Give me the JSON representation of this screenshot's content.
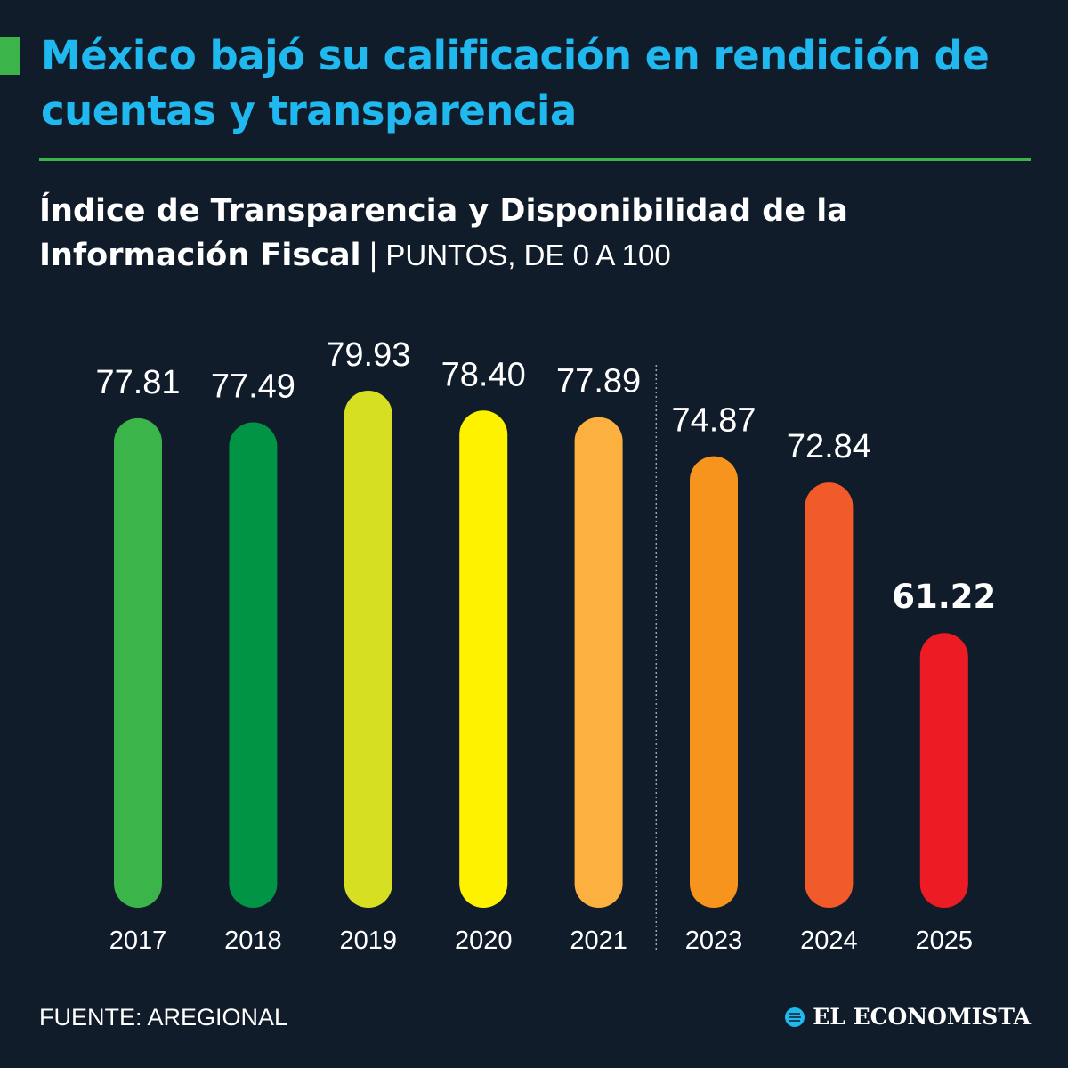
{
  "header": {
    "title": "México bajó su calificación en rendición de cuentas y transparencia",
    "subtitle_bold": "Índice de Transparencia y Disponibilidad de la Información Fiscal",
    "separator": "|",
    "units": "PUNTOS, DE 0 A 100"
  },
  "chart_data": {
    "type": "bar",
    "title": "Índice de Transparencia y Disponibilidad de la Información Fiscal",
    "ylabel": "PUNTOS, DE 0 A 100",
    "categories": [
      "2017",
      "2018",
      "2019",
      "2020",
      "2021",
      "2023",
      "2024",
      "2025"
    ],
    "values": [
      77.81,
      77.49,
      79.93,
      78.4,
      77.89,
      74.87,
      72.84,
      61.22
    ],
    "value_labels": [
      "77.81",
      "77.49",
      "79.93",
      "78.40",
      "77.89",
      "74.87",
      "72.84",
      "61.22"
    ],
    "colors": [
      "#3bb54a",
      "#009444",
      "#d7df23",
      "#fff200",
      "#fbb040",
      "#f7941d",
      "#f15a29",
      "#ed1c24"
    ],
    "highlight_index": 7,
    "divider_after": "2021",
    "grid": false
  },
  "footer": {
    "source": "FUENTE: AREGIONAL",
    "brand": "EL ECONOMISTA"
  },
  "colors": {
    "background": "#111c2a",
    "title": "#1fb8ef",
    "accent": "#3bb54a",
    "text": "#ffffff"
  }
}
